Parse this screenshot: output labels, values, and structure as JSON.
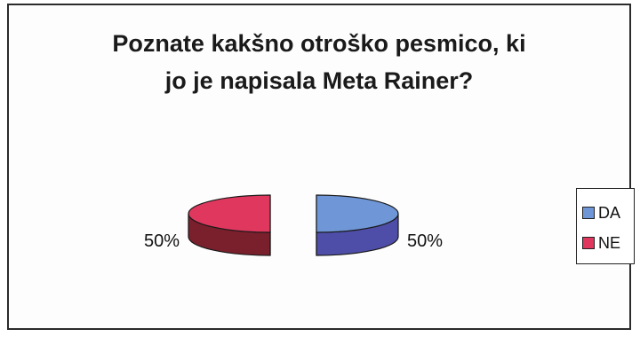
{
  "chart_data": {
    "type": "pie",
    "style": "3d-exploded",
    "title": "Poznate kakšno otroško pesmico, ki\njo je napisala Meta Rainer?",
    "slices": [
      {
        "label": "DA",
        "value": 50,
        "value_label": "50%",
        "color": "#6f96d6",
        "side_color": "#4e4ea8"
      },
      {
        "label": "NE",
        "value": 50,
        "value_label": "50%",
        "color": "#e0375e",
        "side_color": "#7a1f2c"
      }
    ],
    "legend_placement": "right",
    "grid": false
  }
}
